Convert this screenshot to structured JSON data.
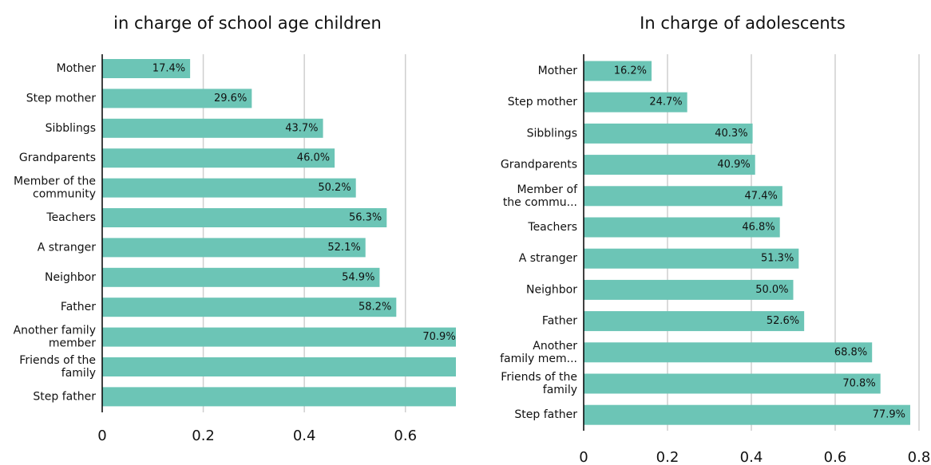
{
  "chart_data": [
    {
      "type": "barh",
      "title": "in charge of school age children",
      "categories": [
        "Mother",
        "Step mother",
        "Sibblings",
        "Grandparents",
        "Member of the\ncommunity",
        "Teachers",
        "A stranger",
        "Neighbor",
        "Father",
        "Another family\nmember",
        "Friends of the\nfamily",
        "Step father"
      ],
      "values": [
        0.174,
        0.296,
        0.437,
        0.46,
        0.502,
        0.563,
        0.521,
        0.549,
        0.582,
        0.709,
        0.75,
        0.78
      ],
      "value_labels": [
        "17.4%",
        "29.6%",
        "43.7%",
        "46.0%",
        "50.2%",
        "56.3%",
        "52.1%",
        "54.9%",
        "58.2%",
        "70.9%",
        null,
        null
      ],
      "color": "#6cc5b6",
      "xlim": [
        0,
        0.7
      ],
      "xticks": [
        0,
        0.2,
        0.4,
        0.6
      ],
      "grid": true
    },
    {
      "type": "barh",
      "title": "In charge of adolescents",
      "categories": [
        "Mother",
        "Step mother",
        "Sibblings",
        "Grandparents",
        "Member of\nthe commu...",
        "Teachers",
        "A stranger",
        "Neighbor",
        "Father",
        "Another\nfamily mem...",
        "Friends of the\nfamily",
        "Step father"
      ],
      "values": [
        0.162,
        0.247,
        0.403,
        0.409,
        0.474,
        0.468,
        0.513,
        0.5,
        0.526,
        0.688,
        0.708,
        0.779
      ],
      "value_labels": [
        "16.2%",
        "24.7%",
        "40.3%",
        "40.9%",
        "47.4%",
        "46.8%",
        "51.3%",
        "50.0%",
        "52.6%",
        "68.8%",
        "70.8%",
        "77.9%"
      ],
      "color": "#6cc5b6",
      "xlim": [
        0,
        0.8
      ],
      "xticks": [
        0,
        0.2,
        0.4,
        0.6,
        0.8
      ],
      "grid": true
    }
  ]
}
